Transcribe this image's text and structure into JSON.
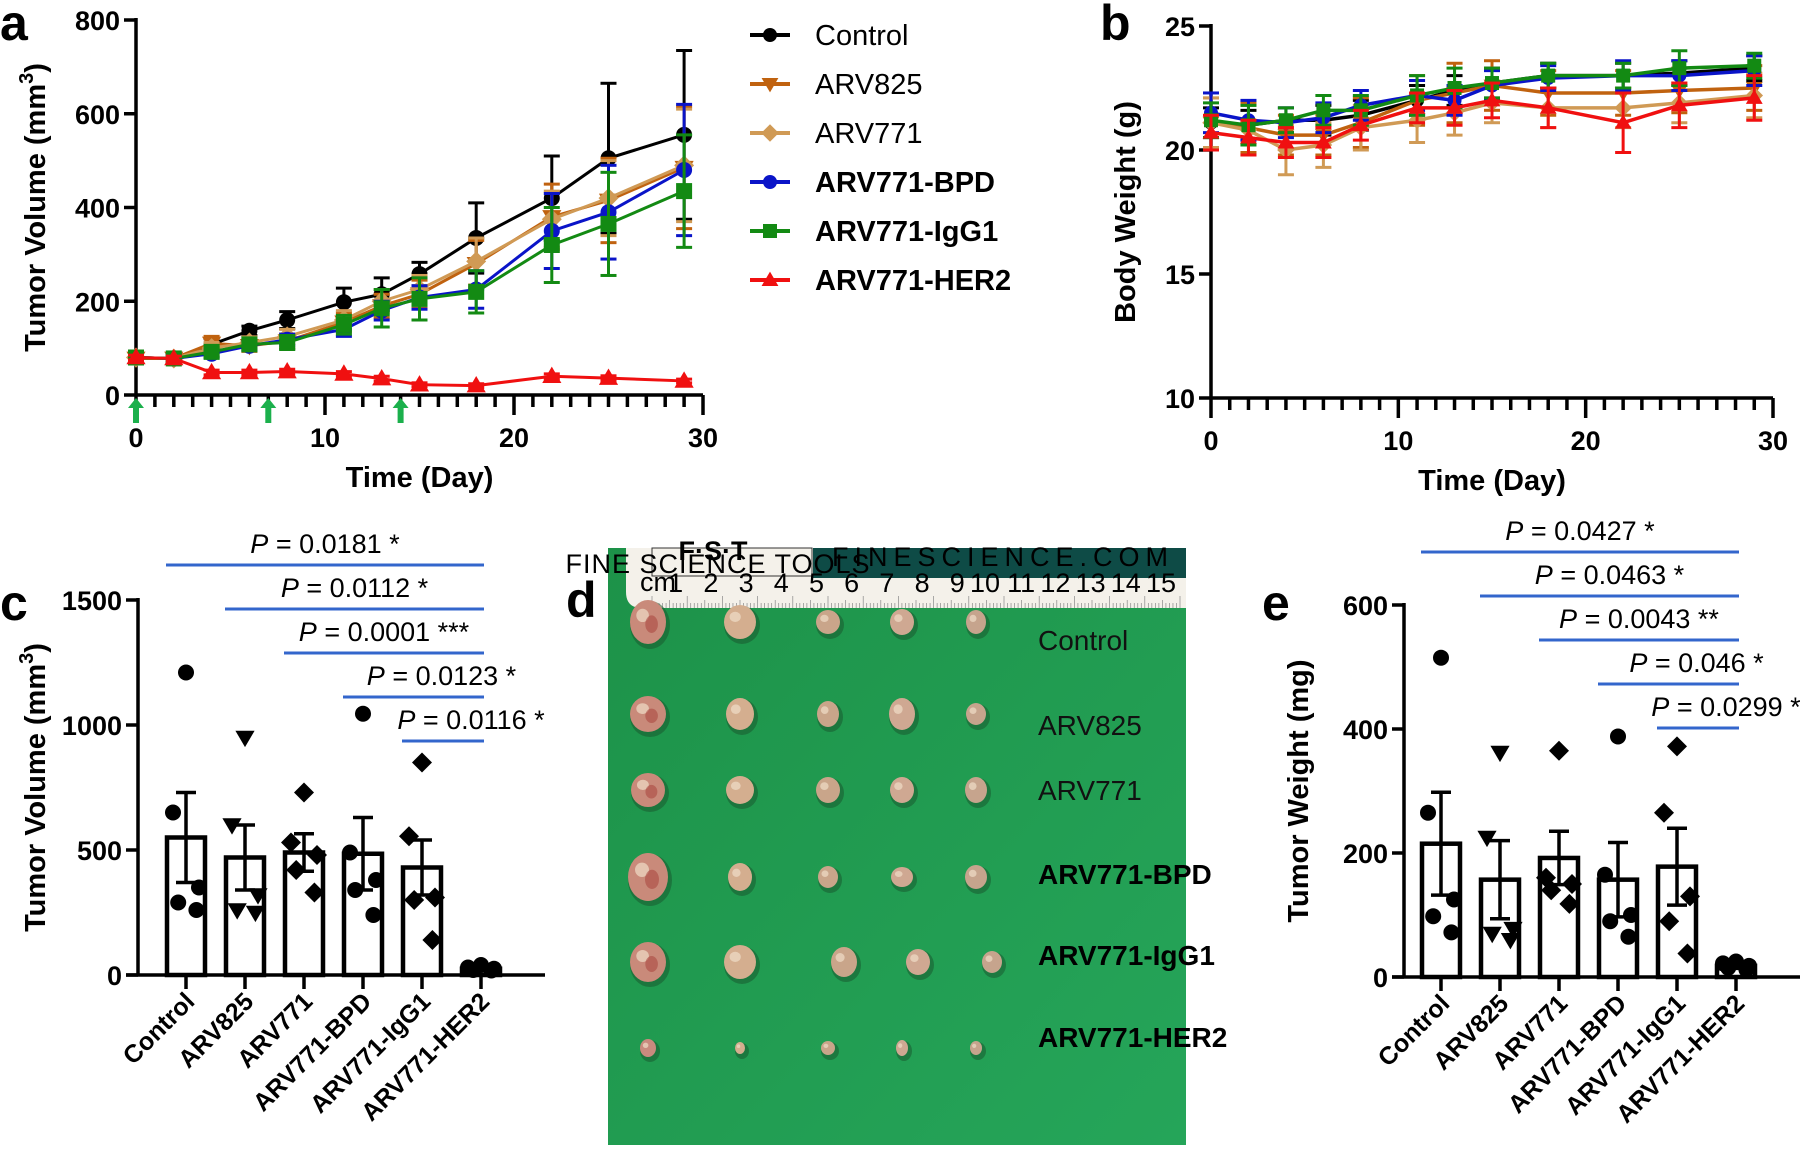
{
  "figure": {
    "panel_labels": [
      "a",
      "b",
      "c",
      "d",
      "e"
    ],
    "groups": [
      {
        "name": "Control",
        "color": "#000000",
        "marker": "circle",
        "bold": false
      },
      {
        "name": "ARV825",
        "color": "#c0620f",
        "marker": "triangle-down",
        "bold": false
      },
      {
        "name": "ARV771",
        "color": "#d09a55",
        "marker": "diamond",
        "bold": false
      },
      {
        "name": "ARV771-BPD",
        "color": "#0a14c8",
        "marker": "circle",
        "bold": true
      },
      {
        "name": "ARV771-IgG1",
        "color": "#138a13",
        "marker": "square",
        "bold": true
      },
      {
        "name": "ARV771-HER2",
        "color": "#f01010",
        "marker": "triangle-up",
        "bold": true
      }
    ],
    "dose_arrow_color": "#1bb04c",
    "sig_line_color": "#3366cc"
  },
  "chart_data": [
    {
      "id": "a",
      "type": "line",
      "title": "",
      "xlabel": "Time (Day)",
      "ylabel": "Tumor Volume (mm3)",
      "ylabel_main": "Tumor Volume (mm",
      "ylabel_sup": "3",
      "ylabel_close": ")",
      "xlim": [
        0,
        30
      ],
      "ylim": [
        0,
        800
      ],
      "xticks": [
        0,
        10,
        20,
        30
      ],
      "yticks": [
        0,
        200,
        400,
        600,
        800
      ],
      "legend": "right",
      "dose_days": [
        0,
        7,
        14
      ],
      "x": [
        0,
        2,
        4,
        6,
        8,
        11,
        13,
        15,
        18,
        22,
        25,
        29
      ],
      "series": [
        {
          "name": "Control",
          "values": [
            80,
            78,
            108,
            137,
            160,
            198,
            215,
            258,
            335,
            420,
            505,
            555
          ],
          "err": [
            8,
            8,
            12,
            10,
            18,
            30,
            35,
            25,
            75,
            90,
            160,
            180
          ]
        },
        {
          "name": "ARV825",
          "values": [
            78,
            78,
            110,
            105,
            115,
            155,
            190,
            215,
            280,
            380,
            415,
            485
          ],
          "err": [
            10,
            8,
            15,
            12,
            15,
            20,
            25,
            30,
            50,
            70,
            90,
            130
          ]
        },
        {
          "name": "ARV771",
          "values": [
            80,
            78,
            100,
            112,
            125,
            160,
            200,
            225,
            285,
            375,
            420,
            490
          ],
          "err": [
            10,
            8,
            12,
            12,
            15,
            20,
            25,
            30,
            50,
            60,
            80,
            120
          ]
        },
        {
          "name": "ARV771-BPD",
          "values": [
            80,
            78,
            88,
            105,
            118,
            140,
            180,
            208,
            225,
            350,
            390,
            480
          ],
          "err": [
            8,
            8,
            8,
            10,
            12,
            15,
            20,
            25,
            40,
            80,
            100,
            140
          ]
        },
        {
          "name": "ARV771-IgG1",
          "values": [
            80,
            78,
            92,
            108,
            112,
            150,
            185,
            205,
            220,
            320,
            365,
            435
          ],
          "err": [
            8,
            8,
            10,
            10,
            15,
            20,
            40,
            45,
            45,
            80,
            110,
            120
          ]
        },
        {
          "name": "ARV771-HER2",
          "values": [
            80,
            78,
            48,
            48,
            50,
            45,
            35,
            22,
            20,
            40,
            36,
            30
          ],
          "err": [
            5,
            5,
            5,
            5,
            5,
            5,
            5,
            4,
            4,
            5,
            5,
            4
          ]
        }
      ]
    },
    {
      "id": "b",
      "type": "line",
      "title": "",
      "xlabel": "Time (Day)",
      "ylabel": "Body Weight (g)",
      "xlim": [
        0,
        30
      ],
      "ylim": [
        10,
        25
      ],
      "xticks": [
        0,
        10,
        20,
        30
      ],
      "yticks": [
        10,
        15,
        20,
        25
      ],
      "x": [
        0,
        2,
        4,
        6,
        8,
        11,
        13,
        15,
        18,
        22,
        25,
        29
      ],
      "series": [
        {
          "name": "Control",
          "values": [
            21.1,
            21.0,
            21.2,
            21.2,
            21.4,
            22.0,
            22.4,
            22.7,
            23.0,
            23.0,
            23.1,
            23.3
          ],
          "err": [
            0.6,
            0.6,
            0.5,
            0.6,
            0.6,
            0.6,
            0.6,
            0.6,
            0.5,
            0.5,
            0.5,
            0.5
          ]
        },
        {
          "name": "ARV825",
          "values": [
            21.1,
            20.9,
            20.6,
            20.6,
            21.1,
            22.0,
            22.3,
            22.6,
            22.3,
            22.3,
            22.4,
            22.5
          ],
          "err": [
            1.0,
            1.0,
            0.8,
            0.8,
            1.0,
            1.0,
            1.2,
            1.0,
            0.9,
            0.9,
            0.9,
            0.9
          ]
        },
        {
          "name": "ARV771",
          "values": [
            21.1,
            20.8,
            20.0,
            20.2,
            20.9,
            21.2,
            21.5,
            21.9,
            21.7,
            21.7,
            21.9,
            22.2
          ],
          "err": [
            1.0,
            1.0,
            1.0,
            0.9,
            0.9,
            0.9,
            0.9,
            0.8,
            0.8,
            0.8,
            0.8,
            0.9
          ]
        },
        {
          "name": "ARV771-BPD",
          "values": [
            21.5,
            21.2,
            21.1,
            21.3,
            21.8,
            22.2,
            22.0,
            22.6,
            22.9,
            23.0,
            23.0,
            23.2
          ],
          "err": [
            0.8,
            0.8,
            0.6,
            0.6,
            0.6,
            0.6,
            0.6,
            0.6,
            0.5,
            0.6,
            0.6,
            0.6
          ]
        },
        {
          "name": "ARV771-IgG1",
          "values": [
            21.2,
            21.0,
            21.2,
            21.6,
            21.6,
            22.2,
            22.5,
            22.7,
            23.0,
            23.0,
            23.3,
            23.4
          ],
          "err": [
            0.7,
            0.8,
            0.5,
            0.6,
            0.6,
            0.8,
            0.8,
            0.6,
            0.5,
            0.5,
            0.7,
            0.5
          ]
        },
        {
          "name": "ARV771-HER2",
          "values": [
            20.7,
            20.5,
            20.3,
            20.3,
            21.0,
            21.7,
            21.7,
            22.0,
            21.7,
            21.1,
            21.8,
            22.1
          ],
          "err": [
            0.7,
            0.7,
            0.6,
            0.6,
            0.6,
            0.6,
            0.7,
            0.7,
            0.8,
            1.2,
            0.9,
            0.9
          ]
        }
      ]
    },
    {
      "id": "c",
      "type": "bar",
      "title": "",
      "xlabel": "",
      "ylabel": "Tumor Volume (mm3)",
      "ylabel_main": "Tumor Volume (mm",
      "ylabel_sup": "3",
      "ylabel_close": ")",
      "ylim": [
        0,
        1500
      ],
      "yticks": [
        0,
        500,
        1000,
        1500
      ],
      "categories": [
        "Control",
        "ARV825",
        "ARV771",
        "ARV771-BPD",
        "ARV771-IgG1",
        "ARV771-HER2"
      ],
      "values": [
        550,
        470,
        490,
        485,
        430,
        25
      ],
      "err": [
        180,
        130,
        75,
        145,
        110,
        6
      ],
      "points": [
        [
          1210,
          650,
          350,
          290,
          260
        ],
        [
          950,
          600,
          320,
          260,
          250
        ],
        [
          730,
          530,
          480,
          420,
          330
        ],
        [
          1045,
          490,
          380,
          340,
          240
        ],
        [
          850,
          555,
          310,
          300,
          140
        ],
        [
          40,
          30,
          25,
          20,
          18
        ]
      ],
      "comparisons": [
        {
          "from": 0,
          "to": 5,
          "label_italic": "P",
          "label": " = 0.0181 *"
        },
        {
          "from": 1,
          "to": 5,
          "label_italic": "P",
          "label": " = 0.0112 *"
        },
        {
          "from": 2,
          "to": 5,
          "label_italic": "P",
          "label": " = 0.0001 ***"
        },
        {
          "from": 3,
          "to": 5,
          "label_italic": "P",
          "label": " = 0.0123 *"
        },
        {
          "from": 4,
          "to": 5,
          "label_italic": "P",
          "label": " = 0.0116 *"
        }
      ]
    },
    {
      "id": "e",
      "type": "bar",
      "title": "",
      "xlabel": "",
      "ylabel": "Tumor Weight (mg)",
      "ylim": [
        0,
        600
      ],
      "yticks": [
        0,
        200,
        400,
        600
      ],
      "categories": [
        "Control",
        "ARV825",
        "ARV771",
        "ARV771-BPD",
        "ARV771-IgG1",
        "ARV771-HER2"
      ],
      "values": [
        215,
        157,
        192,
        157,
        178,
        18
      ],
      "err": [
        83,
        63,
        43,
        60,
        62,
        4
      ],
      "points": [
        [
          515,
          265,
          125,
          98,
          72
        ],
        [
          362,
          225,
          78,
          70,
          60
        ],
        [
          365,
          160,
          150,
          140,
          118
        ],
        [
          388,
          165,
          100,
          90,
          65
        ],
        [
          372,
          265,
          130,
          90,
          38
        ],
        [
          25,
          22,
          18,
          15,
          12
        ]
      ],
      "comparisons": [
        {
          "from": 0,
          "to": 5,
          "label_italic": "P",
          "label": " = 0.0427 *"
        },
        {
          "from": 1,
          "to": 5,
          "label_italic": "P",
          "label": " = 0.0463 *"
        },
        {
          "from": 2,
          "to": 5,
          "label_italic": "P",
          "label": " = 0.0043 **"
        },
        {
          "from": 3,
          "to": 5,
          "label_italic": "P",
          "label": " = 0.046 *"
        },
        {
          "from": 4,
          "to": 5,
          "label_italic": "P",
          "label": " = 0.0299 *"
        }
      ]
    }
  ],
  "photo": {
    "ruler_brand": "F·S·T",
    "ruler_brand_sub": "FINE SCIENCE TOOLS",
    "ruler_url": "FINESCIENCE.COM",
    "ruler_unit": "cm",
    "ruler_numbers": [
      "1",
      "2",
      "3",
      "4",
      "5",
      "6",
      "7",
      "8",
      "9",
      "10",
      "11",
      "12",
      "13",
      "14",
      "15"
    ],
    "rows": [
      {
        "prefix": "Control",
        "suffix": "",
        "bold": false
      },
      {
        "prefix": "ARV825",
        "suffix": "",
        "bold": false
      },
      {
        "prefix": "ARV771",
        "suffix": "",
        "bold": false
      },
      {
        "prefix": "ARV771",
        "suffix": "-BPD",
        "bold": true
      },
      {
        "prefix": "ARV771",
        "suffix": "-IgG1",
        "bold": true
      },
      {
        "prefix": "ARV771",
        "suffix": "-HER2",
        "bold": true
      }
    ],
    "background_color": "#1f9a4f"
  }
}
